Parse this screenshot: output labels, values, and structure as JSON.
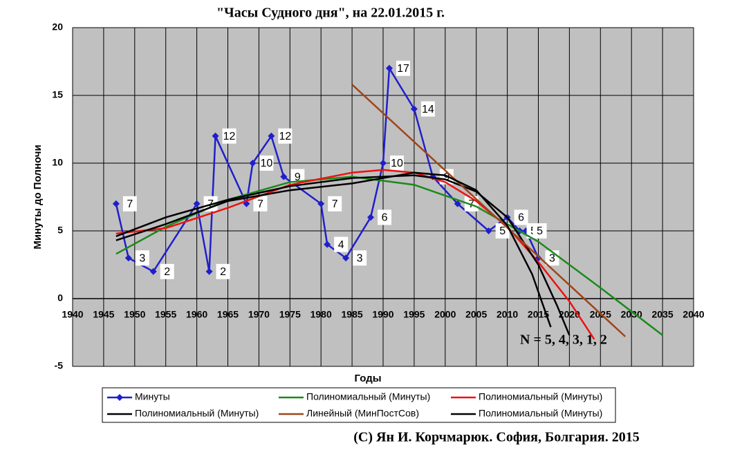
{
  "chart_data": {
    "type": "line",
    "title": "\"Часы Судного дня\", на 22.01.2015 г.",
    "x_label": "Годы",
    "y_label": "Минуты до Полночи",
    "annotation": "N = 5, 4,   3,    1,     2",
    "footer": "(C) Ян И. Корчмарюк. София, Болгария. 2015",
    "xlim": [
      1940,
      2040
    ],
    "xticks": [
      1940,
      1945,
      1950,
      1955,
      1960,
      1965,
      1970,
      1975,
      1980,
      1985,
      1990,
      1995,
      2000,
      2005,
      2010,
      2015,
      2020,
      2025,
      2030,
      2035,
      2040
    ],
    "ylim": [
      -5,
      20
    ],
    "yticks": [
      -5,
      0,
      5,
      10,
      15,
      20
    ],
    "grid": true,
    "legend": "bottom",
    "series": [
      {
        "name": "Минуты",
        "color": "#1f1fcc",
        "markers": true,
        "data_labels": true,
        "x": [
          1947,
          1949,
          1953,
          1960,
          1962,
          1963,
          1968,
          1969,
          1972,
          1974,
          1980,
          1981,
          1984,
          1988,
          1990,
          1991,
          1995,
          1998,
          2002,
          2007,
          2010,
          2012,
          2013,
          2015
        ],
        "values": [
          7,
          3,
          2,
          7,
          2,
          12,
          7,
          10,
          12,
          9,
          7,
          4,
          3,
          6,
          10,
          17,
          14,
          9,
          7,
          5,
          6,
          5,
          5,
          3
        ]
      },
      {
        "name": "Полиномиальный (Минуты)",
        "color": "#1a8a1a",
        "x": [
          1947,
          1955,
          1965,
          1975,
          1985,
          1995,
          2005,
          2015,
          2025,
          2035
        ],
        "values": [
          3.3,
          5.3,
          7.3,
          8.6,
          9.0,
          8.4,
          6.8,
          4.2,
          0.8,
          -2.7
        ]
      },
      {
        "name": "Полиномиальный (Минуты)",
        "color": "#ee1111",
        "x": [
          1947,
          1955,
          1965,
          1975,
          1985,
          1990,
          1995,
          2000,
          2005,
          2010,
          2015,
          2020,
          2024
        ],
        "values": [
          4.8,
          5.2,
          6.7,
          8.4,
          9.3,
          9.5,
          9.3,
          8.6,
          7.2,
          5.3,
          2.7,
          -0.2,
          -3
        ]
      },
      {
        "name": "Полиномиальный (Минуты)",
        "color": "#000000",
        "x": [
          1947,
          1955,
          1965,
          1975,
          1985,
          1995,
          2000,
          2005,
          2010,
          2015,
          2018,
          2020
        ],
        "values": [
          4.6,
          6.0,
          7.3,
          8.3,
          8.9,
          9.1,
          8.8,
          7.9,
          6.0,
          2.5,
          -0.5,
          -2.7
        ]
      },
      {
        "name": "Линейный (МинПостСов)",
        "color": "#a0441a",
        "x": [
          1985,
          2029
        ],
        "values": [
          15.8,
          -2.8
        ]
      },
      {
        "name": "Полиномиальный (Минуты)",
        "color": "#000000",
        "x": [
          1947,
          1955,
          1965,
          1975,
          1985,
          1990,
          1995,
          2000,
          2005,
          2010,
          2014,
          2017
        ],
        "values": [
          4.3,
          5.5,
          7.2,
          8.0,
          8.5,
          8.9,
          9.3,
          9.1,
          8.0,
          5.4,
          1.8,
          -2.1
        ]
      }
    ]
  }
}
